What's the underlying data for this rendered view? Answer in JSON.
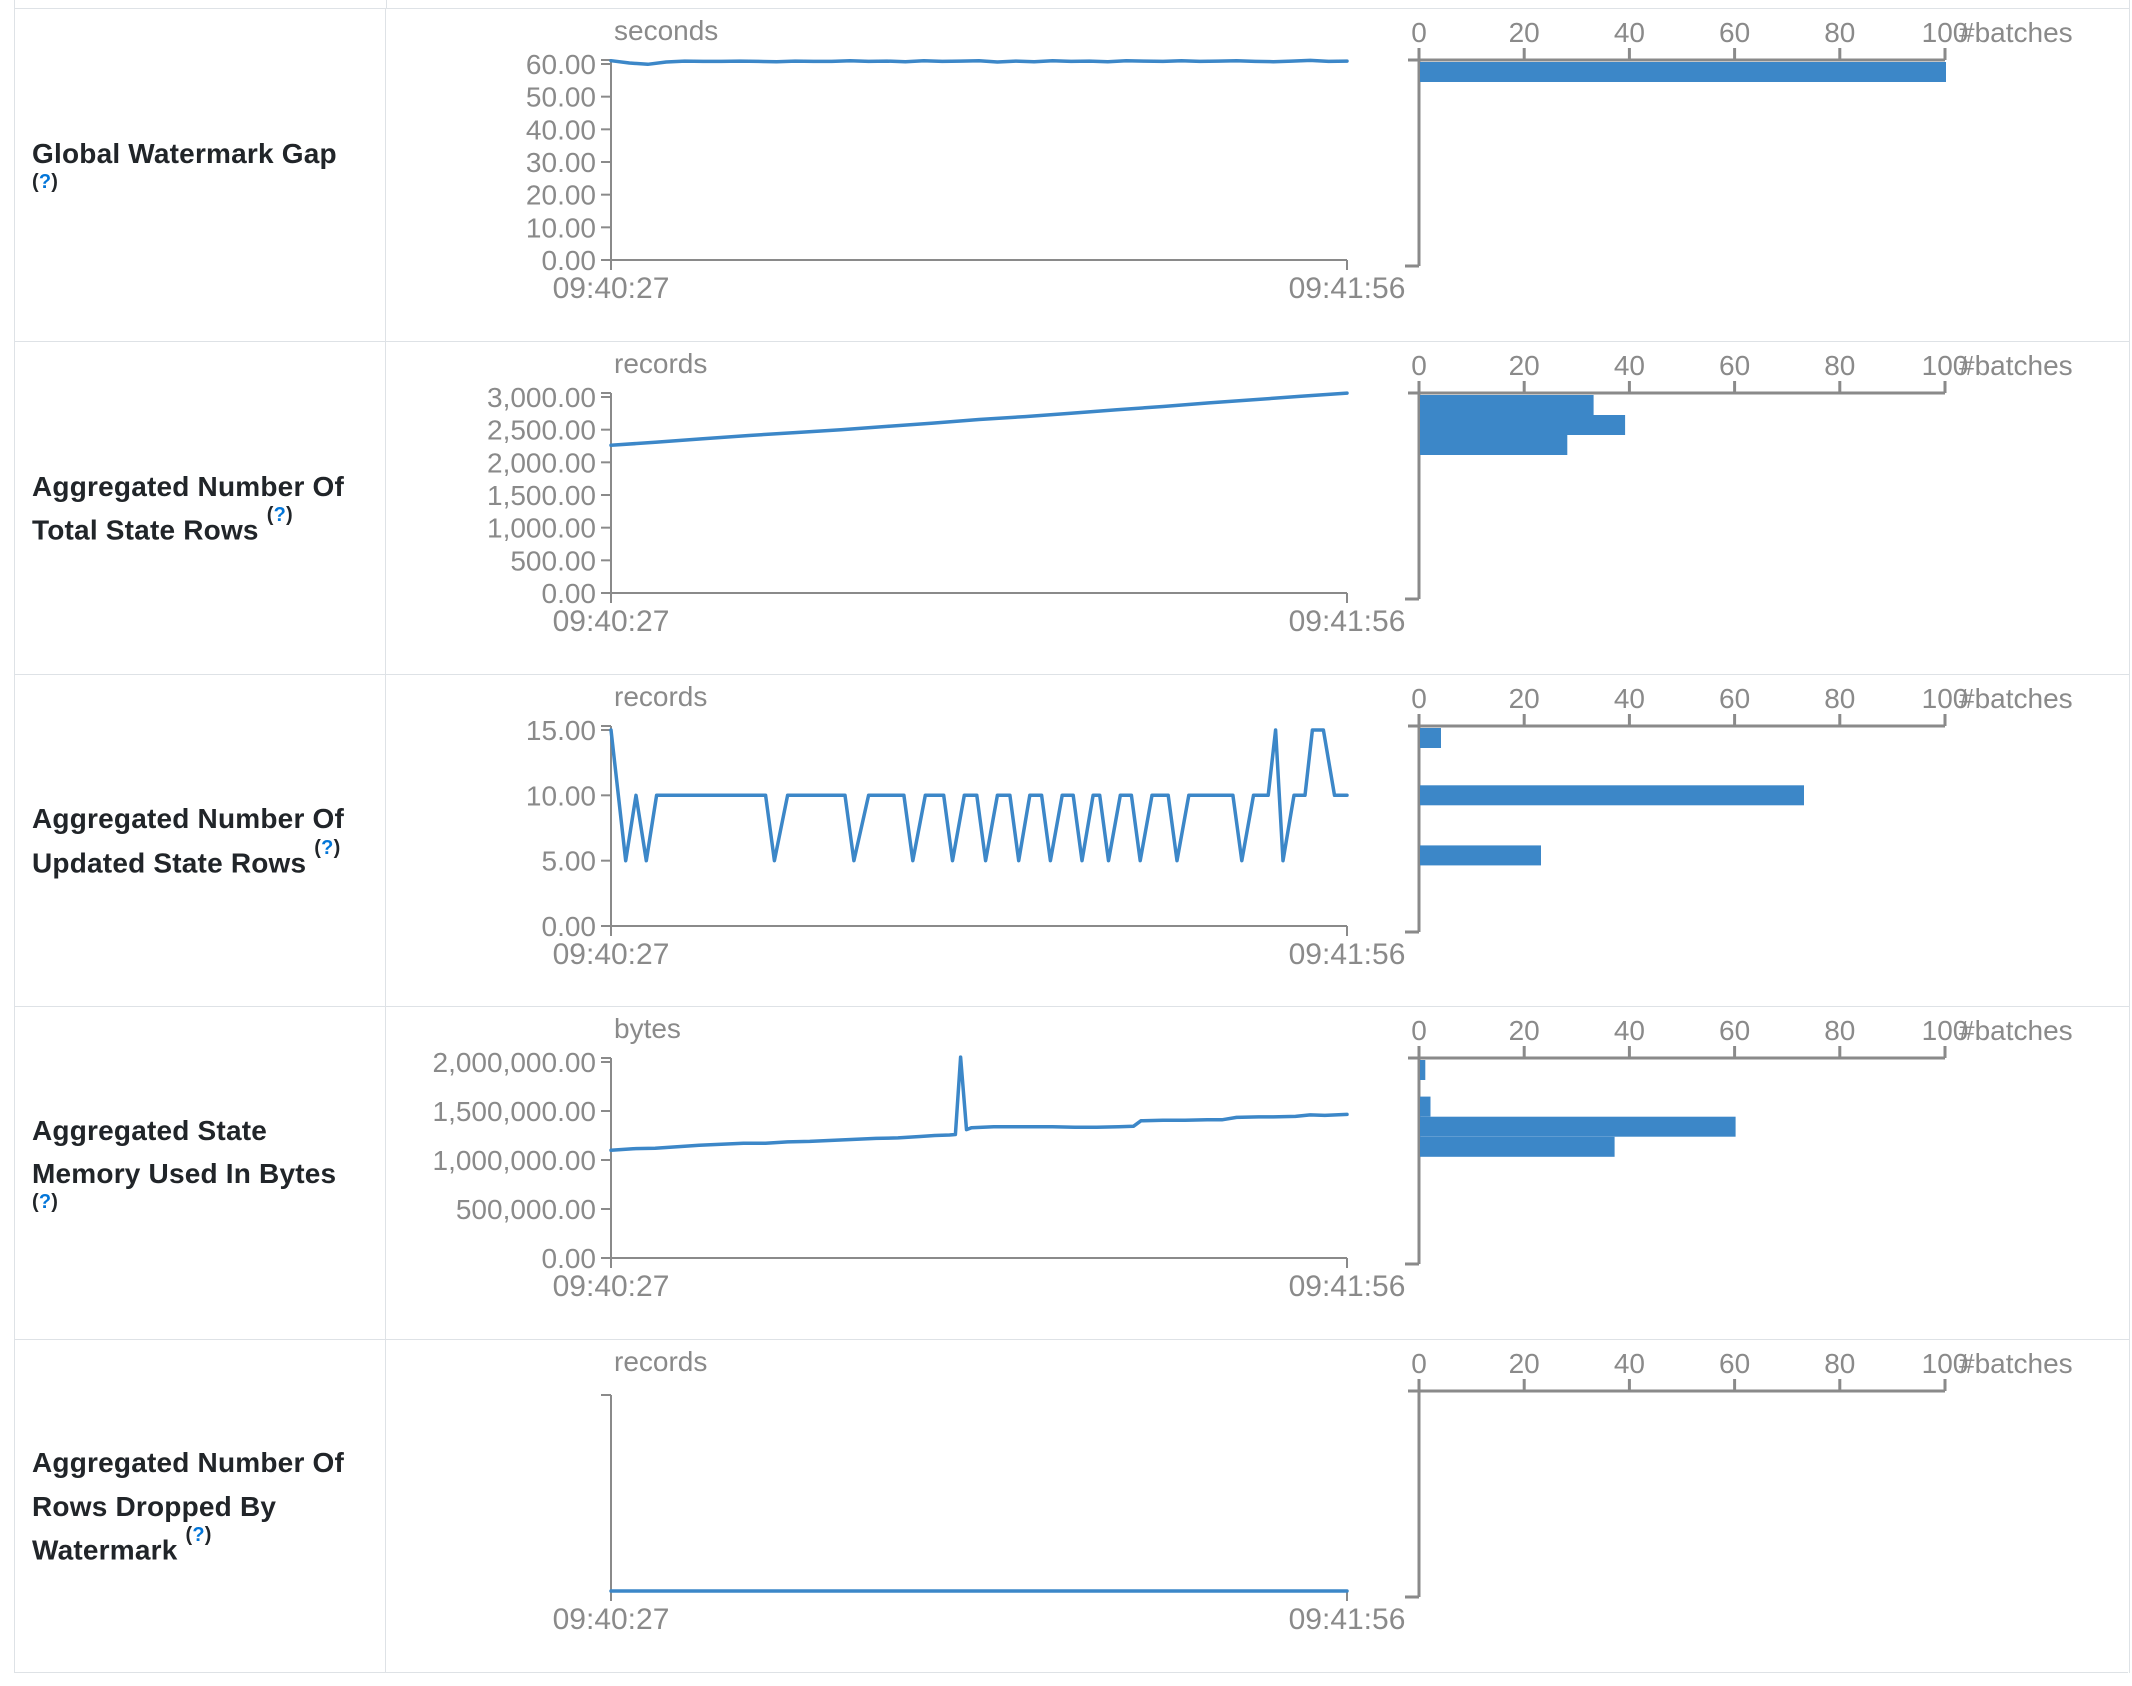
{
  "colors": {
    "accent": "#3c87c8",
    "axis": "#8a8a8a",
    "border": "#dee2e6",
    "label_text": "#212529",
    "help_link": "#0275d8"
  },
  "x_axis": {
    "start_label": "09:40:27",
    "end_label": "09:41:56"
  },
  "hist_axis": {
    "tick_labels": [
      "0",
      "20",
      "40",
      "60",
      "80",
      "100"
    ],
    "unit_label": "#batches"
  },
  "rows": [
    {
      "label": "Global Watermark Gap",
      "help": {
        "open": "(",
        "q": "?",
        "close": ")"
      },
      "unit": "seconds",
      "y_tick_labels": [
        "60.00",
        "50.00",
        "40.00",
        "30.00",
        "20.00",
        "10.00",
        "0.00"
      ],
      "y_max": 60,
      "series": [
        61.0,
        60.3,
        59.9,
        60.6,
        60.9,
        60.8,
        60.8,
        60.9,
        60.8,
        60.7,
        60.9,
        60.8,
        60.8,
        61.0,
        60.8,
        60.9,
        60.7,
        61.0,
        60.8,
        60.9,
        61.0,
        60.6,
        60.9,
        60.7,
        61.0,
        60.8,
        60.9,
        60.7,
        61.0,
        60.9,
        60.8,
        61.0,
        60.8,
        60.9,
        61.0,
        60.8,
        60.7,
        60.9,
        61.1,
        60.8,
        60.9
      ],
      "histogram": [
        {
          "bin_value": 60.5,
          "count": 100
        }
      ]
    },
    {
      "label": "Aggregated Number Of Total State Rows",
      "help": {
        "open": "(",
        "q": "?",
        "close": ")"
      },
      "unit": "records",
      "y_tick_labels": [
        "3,000.00",
        "2,500.00",
        "2,000.00",
        "1,500.00",
        "1,000.00",
        "500.00",
        "0.00"
      ],
      "y_max": 3000,
      "series": [
        2260,
        2310,
        2360,
        2410,
        2455,
        2500,
        2550,
        2600,
        2655,
        2700,
        2750,
        2805,
        2855,
        2910,
        2960,
        3010,
        3060
      ],
      "histogram": [
        {
          "bin_value": 3000,
          "count": 33
        },
        {
          "bin_value": 2571,
          "count": 39
        },
        {
          "bin_value": 2265,
          "count": 28
        }
      ]
    },
    {
      "label": "Aggregated Number Of Updated State Rows",
      "help": {
        "open": "(",
        "q": "?",
        "close": ")"
      },
      "unit": "records",
      "y_tick_labels": [
        "15.00",
        "10.00",
        "5.00",
        "0.00"
      ],
      "y_max": 15,
      "series": [
        [
          0,
          15
        ],
        [
          0.02,
          5
        ],
        [
          0.034,
          10
        ],
        [
          0.048,
          5
        ],
        [
          0.062,
          10
        ],
        [
          0.21,
          10
        ],
        [
          0.222,
          5
        ],
        [
          0.24,
          10
        ],
        [
          0.318,
          10
        ],
        [
          0.33,
          5
        ],
        [
          0.35,
          10
        ],
        [
          0.398,
          10
        ],
        [
          0.41,
          5
        ],
        [
          0.427,
          10
        ],
        [
          0.452,
          10
        ],
        [
          0.464,
          5
        ],
        [
          0.48,
          10
        ],
        [
          0.497,
          10
        ],
        [
          0.509,
          5
        ],
        [
          0.525,
          10
        ],
        [
          0.542,
          10
        ],
        [
          0.554,
          5
        ],
        [
          0.569,
          10
        ],
        [
          0.585,
          10
        ],
        [
          0.597,
          5
        ],
        [
          0.613,
          10
        ],
        [
          0.628,
          10
        ],
        [
          0.64,
          5
        ],
        [
          0.655,
          10
        ],
        [
          0.664,
          10
        ],
        [
          0.676,
          5
        ],
        [
          0.692,
          10
        ],
        [
          0.707,
          10
        ],
        [
          0.719,
          5
        ],
        [
          0.735,
          10
        ],
        [
          0.757,
          10
        ],
        [
          0.769,
          5
        ],
        [
          0.785,
          10
        ],
        [
          0.845,
          10
        ],
        [
          0.857,
          5
        ],
        [
          0.873,
          10
        ],
        [
          0.893,
          10
        ],
        [
          0.903,
          15
        ],
        [
          0.913,
          5
        ],
        [
          0.928,
          10
        ],
        [
          0.943,
          10
        ],
        [
          0.953,
          15
        ],
        [
          0.968,
          15
        ],
        [
          0.983,
          10
        ],
        [
          1,
          10
        ]
      ],
      "histogram": [
        {
          "bin_value": 15,
          "count": 4
        },
        {
          "bin_value": 10,
          "count": 73
        },
        {
          "bin_value": 5.4,
          "count": 23
        }
      ]
    },
    {
      "label": "Aggregated State Memory Used In Bytes",
      "help": {
        "open": "(",
        "q": "?",
        "close": ")"
      },
      "unit": "bytes",
      "y_tick_labels": [
        "2,000,000.00",
        "1,500,000.00",
        "1,000,000.00",
        "500,000.00",
        "0.00"
      ],
      "y_max": 2000000,
      "series": [
        [
          0,
          1100000
        ],
        [
          0.03,
          1115000
        ],
        [
          0.06,
          1120000
        ],
        [
          0.09,
          1135000
        ],
        [
          0.12,
          1150000
        ],
        [
          0.15,
          1160000
        ],
        [
          0.18,
          1170000
        ],
        [
          0.21,
          1170000
        ],
        [
          0.24,
          1185000
        ],
        [
          0.27,
          1190000
        ],
        [
          0.3,
          1200000
        ],
        [
          0.33,
          1210000
        ],
        [
          0.36,
          1220000
        ],
        [
          0.39,
          1225000
        ],
        [
          0.42,
          1240000
        ],
        [
          0.44,
          1250000
        ],
        [
          0.46,
          1255000
        ],
        [
          0.468,
          1260000
        ],
        [
          0.475,
          2050000
        ],
        [
          0.483,
          1310000
        ],
        [
          0.49,
          1330000
        ],
        [
          0.52,
          1340000
        ],
        [
          0.56,
          1340000
        ],
        [
          0.6,
          1340000
        ],
        [
          0.63,
          1335000
        ],
        [
          0.66,
          1335000
        ],
        [
          0.69,
          1340000
        ],
        [
          0.71,
          1345000
        ],
        [
          0.72,
          1400000
        ],
        [
          0.75,
          1405000
        ],
        [
          0.78,
          1405000
        ],
        [
          0.81,
          1410000
        ],
        [
          0.83,
          1410000
        ],
        [
          0.85,
          1435000
        ],
        [
          0.88,
          1440000
        ],
        [
          0.9,
          1440000
        ],
        [
          0.93,
          1445000
        ],
        [
          0.95,
          1460000
        ],
        [
          0.97,
          1455000
        ],
        [
          1,
          1465000
        ]
      ],
      "histogram": [
        {
          "bin_value": 2050000,
          "count": 1
        },
        {
          "bin_value": 1545000,
          "count": 2
        },
        {
          "bin_value": 1340000,
          "count": 60
        },
        {
          "bin_value": 1135000,
          "count": 37
        }
      ]
    },
    {
      "label": "Aggregated Number Of Rows Dropped By Watermark",
      "help": {
        "open": "(",
        "q": "?",
        "close": ")"
      },
      "unit": "records",
      "y_tick_labels": [],
      "y_max": 1,
      "series": [
        [
          0,
          0
        ],
        [
          1,
          0
        ]
      ],
      "histogram": []
    }
  ]
}
